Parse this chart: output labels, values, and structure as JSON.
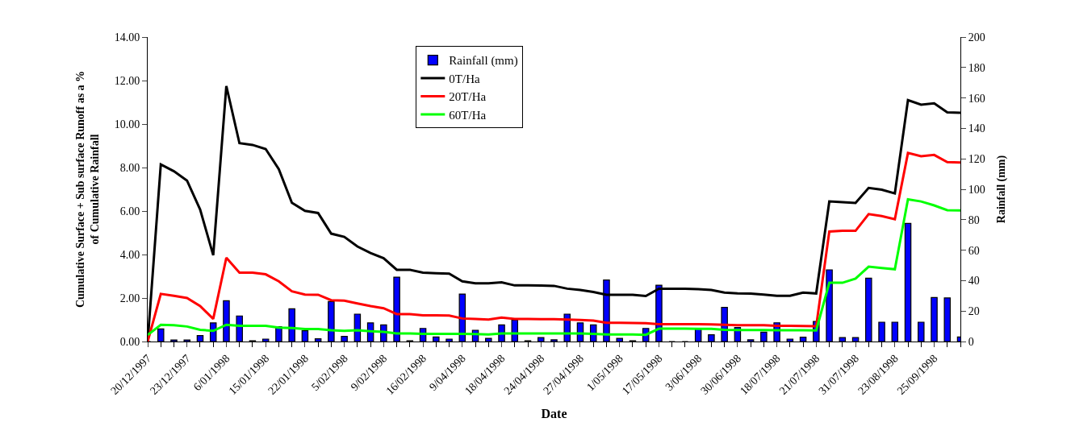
{
  "chart_data": {
    "type": "line",
    "xlabel": "Date",
    "ylabel": "Cumulative Surface + Sub surface Runoff as a %\nof Cumulative Rainfall",
    "y2label": "Rainfall (mm)",
    "categories": [
      "20/12/1997",
      null,
      null,
      "23/12/1997",
      null,
      null,
      "6/01/1998",
      null,
      null,
      "15/01/1998",
      null,
      null,
      "22/01/1998",
      null,
      null,
      "5/02/1998",
      null,
      null,
      "9/02/1998",
      null,
      null,
      "16/02/1998",
      null,
      null,
      "9/04/1998",
      null,
      null,
      "18/04/1998",
      null,
      null,
      "24/04/1998",
      null,
      null,
      "27/04/1998",
      null,
      null,
      "1/05/1998",
      null,
      null,
      "17/05/1998",
      null,
      null,
      "3/06/1998",
      null,
      null,
      "30/06/1998",
      null,
      null,
      "18/07/1998",
      null,
      null,
      "21/07/1998",
      null,
      null,
      "31/07/1998",
      null,
      null,
      "23/08/1998",
      null,
      null,
      "25/09/1998",
      null,
      null
    ],
    "series": [
      {
        "name": "Rainfall (mm)",
        "type": "bar",
        "axis": "y2",
        "color": "#0000ff",
        "values": [
          0,
          8.3,
          1,
          1,
          3.9,
          12.2,
          26.8,
          16.8,
          0.5,
          1.6,
          9.7,
          21.5,
          7.1,
          1.8,
          26.3,
          3.4,
          18.0,
          12.2,
          10.9,
          42.3,
          0.5,
          8.6,
          3.0,
          1.6,
          31.2,
          7.4,
          2.1,
          10.9,
          14.1,
          0.5,
          2.6,
          1.1,
          18.0,
          12.2,
          10.9,
          40.4,
          2.1,
          0.5,
          8.6,
          37.0,
          0,
          0,
          8.3,
          4.4,
          22.4,
          9.2,
          1.1,
          6.2,
          12.3,
          1.6,
          2.8,
          13.2,
          47.1,
          2.6,
          2.6,
          41.6,
          12.7,
          12.7,
          77.6,
          12.7,
          28.9,
          28.6,
          3.0
        ]
      },
      {
        "name": "0T/Ha",
        "color": "#000000",
        "values": [
          0,
          8.14,
          7.83,
          7.4,
          6.07,
          3.97,
          11.75,
          9.12,
          9.04,
          8.85,
          7.93,
          6.38,
          6.01,
          5.91,
          4.96,
          4.81,
          4.37,
          4.07,
          3.83,
          3.3,
          3.3,
          3.17,
          3.14,
          3.12,
          2.77,
          2.68,
          2.68,
          2.72,
          2.58,
          2.58,
          2.57,
          2.56,
          2.43,
          2.37,
          2.28,
          2.15,
          2.15,
          2.15,
          2.09,
          2.43,
          2.43,
          2.43,
          2.41,
          2.37,
          2.25,
          2.21,
          2.2,
          2.16,
          2.1,
          2.1,
          2.25,
          2.21,
          6.44,
          6.41,
          6.37,
          7.06,
          6.98,
          6.81,
          11.1,
          10.89,
          10.95,
          10.54,
          10.52
        ]
      },
      {
        "name": "20T/Ha",
        "color": "#ff0000",
        "values": [
          0,
          2.19,
          2.1,
          2.0,
          1.63,
          1.04,
          3.85,
          3.17,
          3.17,
          3.09,
          2.77,
          2.31,
          2.16,
          2.15,
          1.9,
          1.88,
          1.75,
          1.63,
          1.53,
          1.26,
          1.26,
          1.2,
          1.2,
          1.19,
          1.06,
          1.04,
          1.01,
          1.1,
          1.04,
          1.04,
          1.03,
          1.03,
          1.01,
          0.99,
          0.96,
          0.86,
          0.86,
          0.85,
          0.84,
          0.8,
          0.8,
          0.8,
          0.8,
          0.79,
          0.77,
          0.75,
          0.75,
          0.75,
          0.72,
          0.72,
          0.71,
          0.7,
          5.06,
          5.09,
          5.09,
          5.86,
          5.77,
          5.62,
          8.67,
          8.52,
          8.58,
          8.25,
          8.23
        ]
      },
      {
        "name": "60T/Ha",
        "color": "#00ff00",
        "values": [
          0.3,
          0.77,
          0.75,
          0.69,
          0.54,
          0.49,
          0.77,
          0.72,
          0.72,
          0.72,
          0.64,
          0.62,
          0.57,
          0.57,
          0.52,
          0.49,
          0.52,
          0.47,
          0.44,
          0.37,
          0.37,
          0.35,
          0.35,
          0.35,
          0.35,
          0.34,
          0.32,
          0.37,
          0.37,
          0.37,
          0.37,
          0.37,
          0.37,
          0.37,
          0.35,
          0.32,
          0.32,
          0.32,
          0.31,
          0.59,
          0.59,
          0.59,
          0.58,
          0.58,
          0.54,
          0.53,
          0.53,
          0.53,
          0.52,
          0.52,
          0.52,
          0.51,
          2.7,
          2.7,
          2.89,
          3.44,
          3.38,
          3.32,
          6.54,
          6.44,
          6.26,
          6.04,
          6.03
        ]
      }
    ],
    "ylim": [
      0,
      14
    ],
    "yticks": [
      {
        "value": 0,
        "label": "0.00"
      },
      {
        "value": 2,
        "label": "2.00"
      },
      {
        "value": 4,
        "label": "4.00"
      },
      {
        "value": 6,
        "label": "6.00"
      },
      {
        "value": 8,
        "label": "8.00"
      },
      {
        "value": 10,
        "label": "10.00"
      },
      {
        "value": 12,
        "label": "12.00"
      },
      {
        "value": 14,
        "label": "14.00"
      }
    ],
    "y2lim": [
      0,
      200
    ],
    "y2ticks": [
      0,
      20,
      40,
      60,
      80,
      100,
      120,
      140,
      160,
      180,
      200
    ],
    "legend": "top",
    "grid": false,
    "marker": "none",
    "line_style": "solid"
  }
}
